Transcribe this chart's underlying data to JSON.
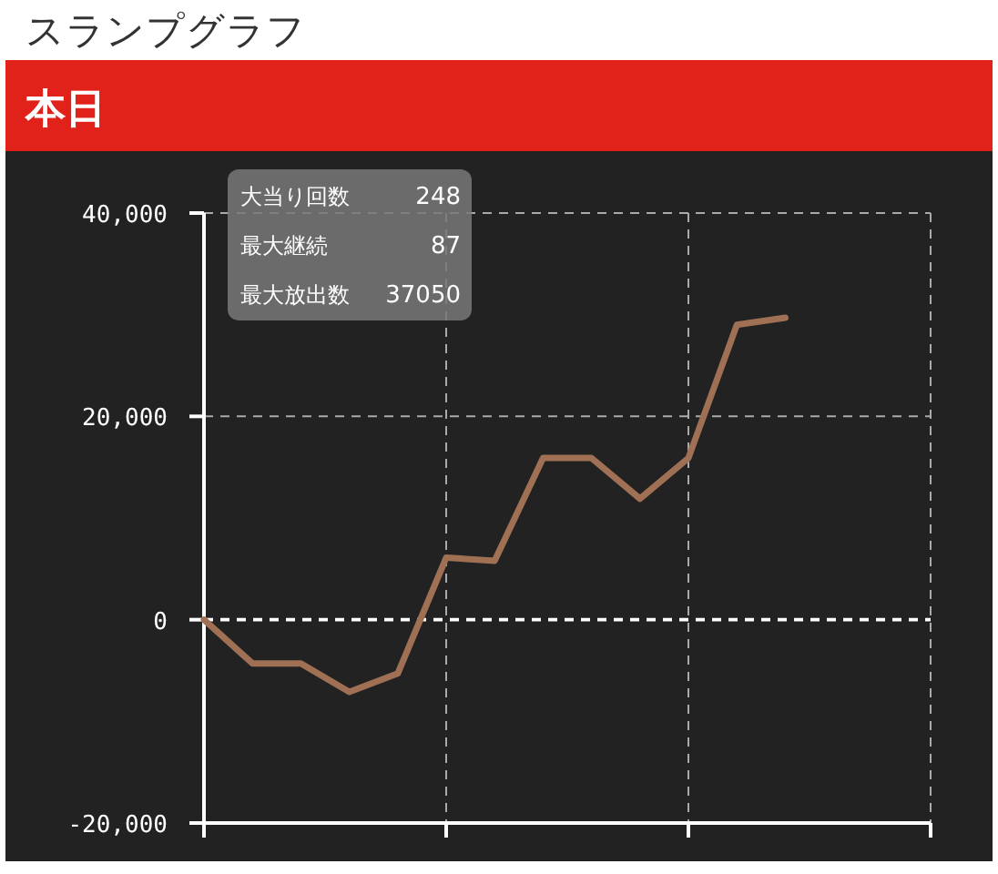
{
  "chart_data": {
    "type": "line",
    "title": "スランプグラフ",
    "subtitle": "本日",
    "categories": [
      null,
      null,
      null,
      null,
      null,
      null,
      null,
      null,
      null,
      null,
      null,
      null,
      null,
      null,
      null,
      null
    ],
    "series": [
      {
        "color": "#a07055",
        "values": [
          0,
          -4300,
          -4300,
          -7100,
          -5300,
          6100,
          5800,
          15900,
          15900,
          11900,
          15900,
          29000,
          29700,
          null,
          null,
          null
        ]
      }
    ],
    "ylim": [
      -20000,
      40000
    ],
    "yticks": [
      {
        "value": -20000,
        "label": "-20,000"
      },
      0,
      {
        "value": 20000,
        "label": "20,000"
      },
      {
        "value": 40000,
        "label": "40,000"
      }
    ],
    "ref_lines": [
      {
        "axis": "y",
        "value": 0,
        "color": "#ffffff",
        "line_style": "dashed"
      }
    ],
    "grid": true,
    "marker": "none",
    "line_style": "solid",
    "tick_labels": "y",
    "annotations": [
      "大当り回数",
      "248",
      "最大継続",
      "87",
      "最大放出数",
      "37050"
    ]
  }
}
